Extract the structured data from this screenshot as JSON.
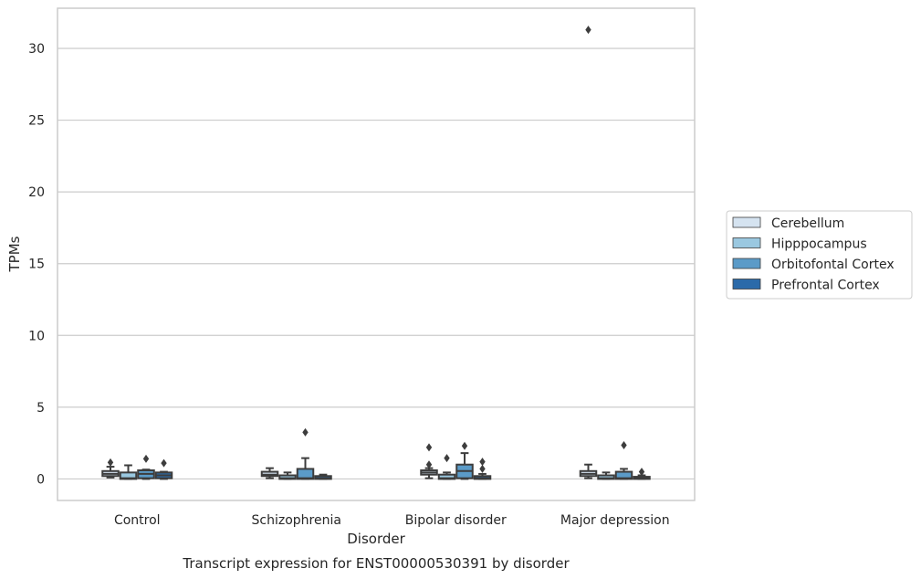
{
  "caption": "Transcript expression for ENST00000530391 by disorder",
  "chart_data": {
    "type": "box",
    "title": "",
    "xlabel": "Disorder",
    "ylabel": "TPMs",
    "ylim": [
      -1.5,
      32.8
    ],
    "yticks": [
      0,
      5,
      10,
      15,
      20,
      25,
      30
    ],
    "grid": true,
    "legend_position": "right",
    "categories": [
      "Control",
      "Schizophrenia",
      "Bipolar disorder",
      "Major depression"
    ],
    "series": [
      {
        "name": "Cerebellum",
        "color": "#d5e3f0",
        "boxes": [
          {
            "whislo": 0.1,
            "q1": 0.2,
            "med": 0.35,
            "q3": 0.55,
            "whishi": 0.85,
            "fliers": [
              1.15
            ]
          },
          {
            "whislo": 0.05,
            "q1": 0.2,
            "med": 0.3,
            "q3": 0.5,
            "whishi": 0.75,
            "fliers": []
          },
          {
            "whislo": 0.05,
            "q1": 0.3,
            "med": 0.45,
            "q3": 0.6,
            "whishi": 0.75,
            "fliers": [
              1.0,
              2.2
            ]
          },
          {
            "whislo": 0.05,
            "q1": 0.2,
            "med": 0.35,
            "q3": 0.55,
            "whishi": 1.0,
            "fliers": [
              31.3
            ]
          }
        ]
      },
      {
        "name": "Hipppocampus",
        "color": "#9ac8e0",
        "boxes": [
          {
            "whislo": 0.0,
            "q1": 0.0,
            "med": 0.05,
            "q3": 0.45,
            "whishi": 0.95,
            "fliers": []
          },
          {
            "whislo": 0.0,
            "q1": 0.0,
            "med": 0.05,
            "q3": 0.25,
            "whishi": 0.45,
            "fliers": []
          },
          {
            "whislo": 0.0,
            "q1": 0.0,
            "med": 0.05,
            "q3": 0.3,
            "whishi": 0.45,
            "fliers": [
              1.45
            ]
          },
          {
            "whislo": 0.0,
            "q1": 0.0,
            "med": 0.05,
            "q3": 0.25,
            "whishi": 0.45,
            "fliers": []
          }
        ]
      },
      {
        "name": "Orbitofontal Cortex",
        "color": "#5b9bc8",
        "boxes": [
          {
            "whislo": 0.0,
            "q1": 0.05,
            "med": 0.35,
            "q3": 0.6,
            "whishi": 0.65,
            "fliers": [
              1.4
            ]
          },
          {
            "whislo": 0.0,
            "q1": 0.0,
            "med": 0.05,
            "q3": 0.7,
            "whishi": 1.45,
            "fliers": [
              3.25
            ]
          },
          {
            "whislo": 0.0,
            "q1": 0.05,
            "med": 0.55,
            "q3": 1.0,
            "whishi": 1.8,
            "fliers": [
              2.3
            ]
          },
          {
            "whislo": 0.0,
            "q1": 0.0,
            "med": 0.05,
            "q3": 0.5,
            "whishi": 0.7,
            "fliers": [
              2.35
            ]
          }
        ]
      },
      {
        "name": "Prefrontal Cortex",
        "color": "#2b6aa9",
        "boxes": [
          {
            "whislo": 0.0,
            "q1": 0.05,
            "med": 0.25,
            "q3": 0.45,
            "whishi": 0.5,
            "fliers": [
              1.1
            ]
          },
          {
            "whislo": 0.0,
            "q1": 0.0,
            "med": 0.05,
            "q3": 0.2,
            "whishi": 0.3,
            "fliers": []
          },
          {
            "whislo": 0.0,
            "q1": 0.0,
            "med": 0.05,
            "q3": 0.2,
            "whishi": 0.35,
            "fliers": [
              0.7,
              1.2
            ]
          },
          {
            "whislo": 0.0,
            "q1": 0.0,
            "med": 0.05,
            "q3": 0.15,
            "whishi": 0.25,
            "fliers": [
              0.5
            ]
          }
        ]
      }
    ]
  }
}
